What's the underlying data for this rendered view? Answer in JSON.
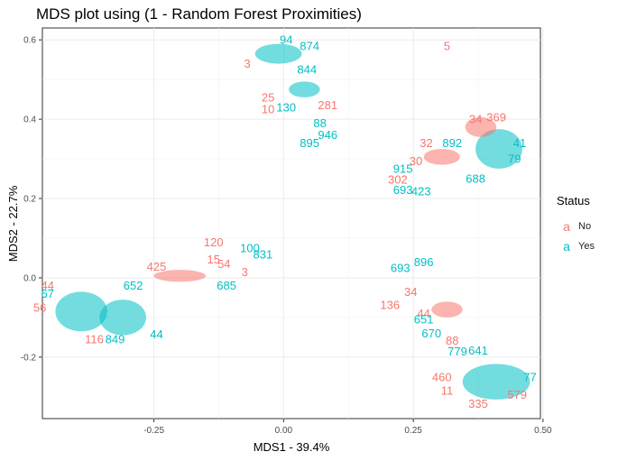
{
  "chart_data": {
    "type": "scatter",
    "title": "MDS plot using (1 - Random Forest Proximities)",
    "xlabel": "MDS1 - 39.4%",
    "ylabel": "MDS2 - 22.7%",
    "xlim": [
      -0.465,
      0.495
    ],
    "ylim": [
      -0.355,
      0.63
    ],
    "x_ticks": [
      -0.25,
      0.0,
      0.25,
      0.5
    ],
    "x_tick_labels": [
      "-0.25",
      "0.00",
      "0.25",
      "0.50"
    ],
    "y_ticks": [
      -0.2,
      0.0,
      0.2,
      0.4,
      0.6
    ],
    "y_tick_labels": [
      "-0.2",
      "0.0",
      "0.2",
      "0.4",
      "0.6"
    ],
    "grid": true,
    "marker": "text",
    "legend": {
      "title": "Status",
      "position": "right",
      "entries": [
        {
          "glyph": "a",
          "label": "No",
          "color": "#F8766D"
        },
        {
          "glyph": "a",
          "label": "Yes",
          "color": "#00BFC4"
        }
      ]
    },
    "colors": {
      "No": "#F8766D",
      "Yes": "#00BFC4"
    },
    "series": [
      {
        "name": "No",
        "points": [
          {
            "label": "120",
            "x": -0.135,
            "y": 0.09
          },
          {
            "label": "15",
            "x": -0.135,
            "y": 0.046
          },
          {
            "label": "425",
            "x": -0.245,
            "y": 0.028
          },
          {
            "label": "54",
            "x": -0.115,
            "y": 0.035
          },
          {
            "label": "3",
            "x": -0.075,
            "y": 0.015
          },
          {
            "label": "136",
            "x": 0.205,
            "y": -0.068
          },
          {
            "label": "34",
            "x": 0.245,
            "y": -0.035
          },
          {
            "label": "88",
            "x": 0.325,
            "y": -0.158
          },
          {
            "label": "460",
            "x": 0.305,
            "y": -0.25
          },
          {
            "label": "11",
            "x": 0.315,
            "y": -0.285
          },
          {
            "label": "335",
            "x": 0.375,
            "y": -0.318
          },
          {
            "label": "579",
            "x": 0.45,
            "y": -0.295
          },
          {
            "label": "281",
            "x": 0.085,
            "y": 0.435
          },
          {
            "label": "10",
            "x": -0.03,
            "y": 0.425
          },
          {
            "label": "25",
            "x": -0.03,
            "y": 0.455
          },
          {
            "label": "32",
            "x": 0.275,
            "y": 0.34
          },
          {
            "label": "30",
            "x": 0.255,
            "y": 0.295
          },
          {
            "label": "302",
            "x": 0.22,
            "y": 0.248
          },
          {
            "label": "34",
            "x": 0.37,
            "y": 0.4
          },
          {
            "label": "369",
            "x": 0.41,
            "y": 0.405
          },
          {
            "label": "44",
            "x": -0.455,
            "y": -0.02
          },
          {
            "label": "56",
            "x": -0.47,
            "y": -0.075
          },
          {
            "label": "116",
            "x": -0.365,
            "y": -0.155
          },
          {
            "label": "44",
            "x": 0.27,
            "y": -0.09
          },
          {
            "label": "5",
            "x": 0.315,
            "y": 0.585
          },
          {
            "label": "3",
            "x": -0.07,
            "y": 0.54
          }
        ]
      },
      {
        "name": "Yes",
        "points": [
          {
            "label": "100",
            "x": -0.065,
            "y": 0.075
          },
          {
            "label": "831",
            "x": -0.04,
            "y": 0.059
          },
          {
            "label": "685",
            "x": -0.11,
            "y": -0.02
          },
          {
            "label": "652",
            "x": -0.29,
            "y": -0.02
          },
          {
            "label": "849",
            "x": -0.325,
            "y": -0.155
          },
          {
            "label": "44",
            "x": -0.245,
            "y": -0.142
          },
          {
            "label": "844",
            "x": 0.045,
            "y": 0.525
          },
          {
            "label": "946",
            "x": 0.085,
            "y": 0.36
          },
          {
            "label": "895",
            "x": 0.05,
            "y": 0.34
          },
          {
            "label": "874",
            "x": 0.05,
            "y": 0.585
          },
          {
            "label": "130",
            "x": 0.005,
            "y": 0.43
          },
          {
            "label": "88",
            "x": 0.07,
            "y": 0.39
          },
          {
            "label": "892",
            "x": 0.325,
            "y": 0.34
          },
          {
            "label": "915",
            "x": 0.23,
            "y": 0.275
          },
          {
            "label": "693",
            "x": 0.23,
            "y": 0.222
          },
          {
            "label": "423",
            "x": 0.265,
            "y": 0.218
          },
          {
            "label": "896",
            "x": 0.27,
            "y": 0.04
          },
          {
            "label": "693",
            "x": 0.225,
            "y": 0.025
          },
          {
            "label": "651",
            "x": 0.27,
            "y": -0.105
          },
          {
            "label": "670",
            "x": 0.285,
            "y": -0.14
          },
          {
            "label": "779",
            "x": 0.335,
            "y": -0.185
          },
          {
            "label": "641",
            "x": 0.375,
            "y": -0.183
          },
          {
            "label": "77",
            "x": 0.475,
            "y": -0.25
          },
          {
            "label": "79",
            "x": 0.445,
            "y": 0.3
          },
          {
            "label": "41",
            "x": 0.455,
            "y": 0.34
          },
          {
            "label": "67",
            "x": -0.455,
            "y": -0.04
          },
          {
            "label": "94",
            "x": 0.005,
            "y": 0.6
          },
          {
            "label": "688",
            "x": 0.37,
            "y": 0.25
          }
        ]
      }
    ]
  }
}
